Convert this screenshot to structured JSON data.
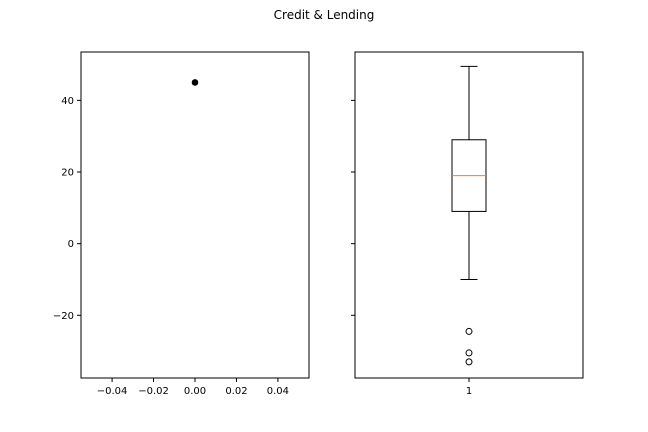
{
  "figure": {
    "title": "Credit & Lending"
  },
  "chart_data": [
    {
      "type": "scatter",
      "points": [
        {
          "x": 0.0,
          "y": 45
        }
      ],
      "xlim": [
        -0.055,
        0.055
      ],
      "ylim": [
        -37.5,
        53.5
      ],
      "x_ticks": [
        -0.04,
        -0.02,
        0.0,
        0.02,
        0.04
      ],
      "x_tick_labels": [
        "−0.04",
        "−0.02",
        "0.00",
        "0.02",
        "0.04"
      ],
      "y_ticks": [
        -20,
        0,
        20,
        40
      ],
      "y_tick_labels": [
        "−20",
        "0",
        "20",
        "40"
      ],
      "point_color": "#000000",
      "grid": false
    },
    {
      "type": "box",
      "categories": [
        "1"
      ],
      "x_tick_labels": [
        "1"
      ],
      "whisker_low": -10,
      "q1": 9,
      "median": 19,
      "q3": 29,
      "whisker_high": 49.5,
      "outliers": [
        -24.5,
        -30.5,
        -33
      ],
      "median_color": "#ff7f0e",
      "sharey": true,
      "grid": false
    }
  ]
}
